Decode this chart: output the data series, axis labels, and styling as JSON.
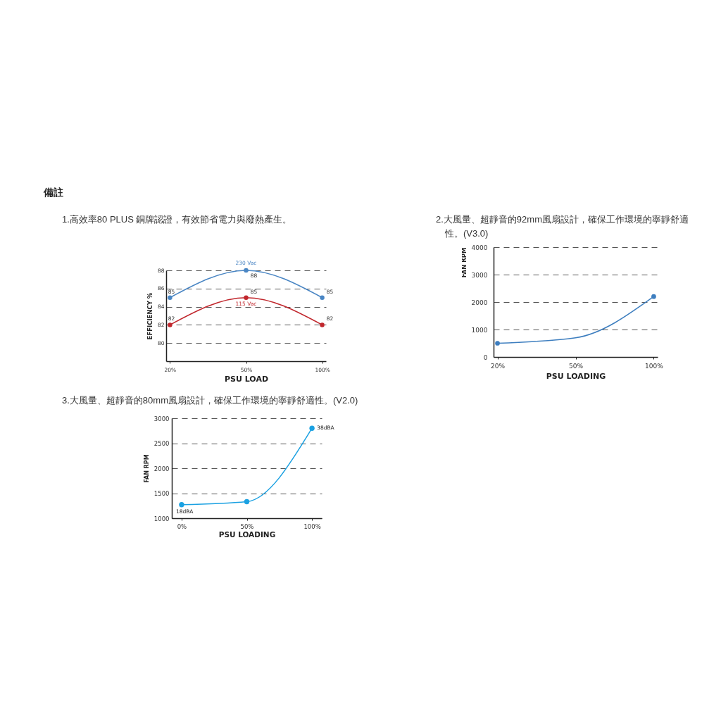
{
  "chart_data": [
    {
      "type": "line",
      "title": "1.高效率80 PLUS 銅牌認證，有效節省電力與廢熱產生。",
      "annotations": [
        "備註"
      ],
      "xlabel": "PSU LOAD",
      "ylabel": "EFFICIENCY %",
      "categories": [
        "20%",
        "50%",
        "100%"
      ],
      "series": [
        {
          "name": "230 Vac",
          "color": "#4a86c4",
          "values": [
            85,
            88,
            85
          ]
        },
        {
          "name": "115 Vac",
          "color": "#c1272d",
          "values": [
            82,
            85,
            82
          ]
        }
      ],
      "ylim": [
        78,
        88
      ],
      "yticks": [
        80,
        82,
        84,
        86,
        88
      ],
      "grid": "y",
      "marker": "circle",
      "data_labels": true
    },
    {
      "type": "line",
      "title": "2.大風量、超靜音的92mm風扇設計，確保工作環境的寧靜舒適性。(V3.0)",
      "xlabel": "PSU LOADING",
      "ylabel": "FAN RPM",
      "categories": [
        "20%",
        "50%",
        "100%"
      ],
      "series": [
        {
          "color": "#3d7ebf",
          "values": [
            500,
            700,
            2200
          ]
        },
        {
          "type": "scatter",
          "color": "#3d7ebf",
          "marker": "circle",
          "x": [
            "20%",
            "100%"
          ],
          "values": [
            500,
            2200
          ]
        }
      ],
      "ylim": [
        0,
        4000
      ],
      "yticks": [
        0,
        1000,
        2000,
        3000,
        4000
      ],
      "grid": "y"
    },
    {
      "type": "line",
      "title": "3.大風量、超靜音的80mm風扇設計，確保工作環境的寧靜舒適性。(V2.0)",
      "xlabel": "PSU LOADING",
      "ylabel": "FAN RPM",
      "categories": [
        "0%",
        "50%",
        "100%"
      ],
      "series": [
        {
          "color": "#1ba1e2",
          "values": [
            1270,
            1330,
            2800
          ]
        }
      ],
      "ylim": [
        1000,
        3000
      ],
      "yticks": [
        1000,
        1500,
        2000,
        2500,
        3000
      ],
      "grid": "y",
      "marker": "circle",
      "annotations": [
        {
          "text": "18dBA",
          "x": "0%",
          "y": 1270
        },
        {
          "text": "38dBA",
          "x": "100%",
          "y": 2800
        }
      ]
    }
  ]
}
